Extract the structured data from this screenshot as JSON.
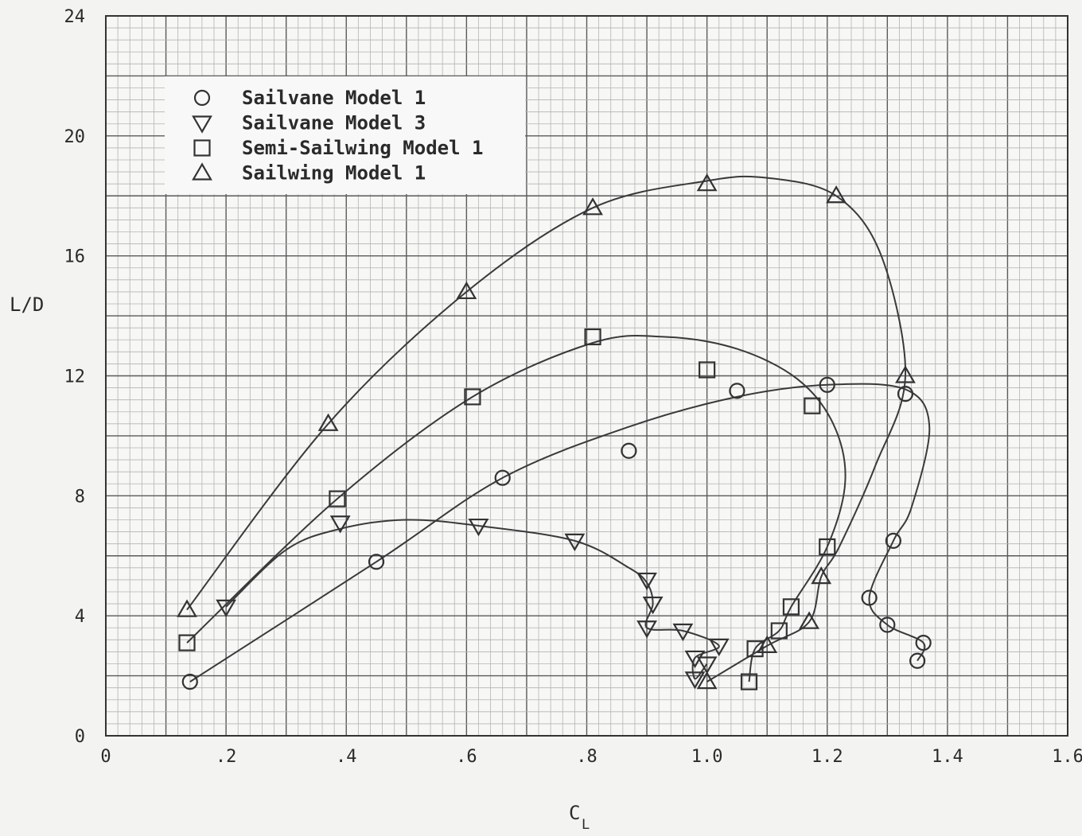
{
  "chart_data": {
    "type": "scatter",
    "xlabel": "C",
    "xlabel_sub": "L",
    "ylabel": "L/D",
    "xlim": [
      0,
      1.6
    ],
    "ylim": [
      0,
      24
    ],
    "xticks": [
      0,
      0.2,
      0.4,
      0.6,
      0.8,
      1.0,
      1.2,
      1.4,
      1.6
    ],
    "xtick_labels": [
      "0",
      ".2",
      ".4",
      ".6",
      ".8",
      "1.0",
      "1.2",
      "1.4",
      "1.6"
    ],
    "yticks": [
      0,
      4,
      8,
      12,
      16,
      20,
      24
    ],
    "ytick_labels": [
      "0",
      "4",
      "8",
      "12",
      "16",
      "20",
      "24"
    ],
    "grid": true,
    "legend_position": "top-left",
    "series": [
      {
        "name": "Sailvane Model 1",
        "marker": "circle",
        "points": [
          [
            0.14,
            1.8
          ],
          [
            0.45,
            5.8
          ],
          [
            0.66,
            8.6
          ],
          [
            0.87,
            9.5
          ],
          [
            1.05,
            11.5
          ],
          [
            1.2,
            11.7
          ],
          [
            1.33,
            11.4
          ],
          [
            1.31,
            6.5
          ],
          [
            1.27,
            4.6
          ],
          [
            1.3,
            3.7
          ],
          [
            1.36,
            3.1
          ],
          [
            1.35,
            2.5
          ]
        ],
        "curve": [
          [
            0.14,
            1.8
          ],
          [
            0.45,
            5.8
          ],
          [
            0.66,
            8.6
          ],
          [
            0.87,
            10.3
          ],
          [
            1.05,
            11.3
          ],
          [
            1.2,
            11.7
          ],
          [
            1.33,
            11.55
          ],
          [
            1.37,
            10.3
          ],
          [
            1.34,
            7.6
          ],
          [
            1.31,
            6.5
          ],
          [
            1.27,
            4.6
          ],
          [
            1.3,
            3.7
          ],
          [
            1.36,
            3.1
          ],
          [
            1.35,
            2.5
          ]
        ]
      },
      {
        "name": "Sailvane Model 3",
        "marker": "triangle-down",
        "points": [
          [
            0.2,
            4.3
          ],
          [
            0.39,
            7.1
          ],
          [
            0.62,
            7.0
          ],
          [
            0.78,
            6.5
          ],
          [
            0.9,
            5.2
          ],
          [
            0.91,
            4.4
          ],
          [
            0.9,
            3.6
          ],
          [
            0.96,
            3.5
          ],
          [
            1.02,
            3.0
          ],
          [
            0.98,
            2.6
          ],
          [
            0.98,
            1.9
          ],
          [
            1.0,
            2.4
          ]
        ],
        "curve": [
          [
            0.2,
            4.3
          ],
          [
            0.3,
            6.2
          ],
          [
            0.39,
            6.9
          ],
          [
            0.5,
            7.2
          ],
          [
            0.62,
            7.0
          ],
          [
            0.78,
            6.5
          ],
          [
            0.87,
            5.6
          ],
          [
            0.9,
            5.1
          ],
          [
            0.91,
            4.4
          ],
          [
            0.9,
            3.6
          ],
          [
            0.96,
            3.5
          ],
          [
            1.02,
            3.0
          ],
          [
            0.98,
            2.6
          ],
          [
            0.98,
            1.9
          ],
          [
            1.0,
            2.4
          ]
        ]
      },
      {
        "name": "Semi-Sailwing Model 1",
        "marker": "square",
        "points": [
          [
            0.135,
            3.1
          ],
          [
            0.385,
            7.9
          ],
          [
            0.61,
            11.3
          ],
          [
            0.81,
            13.3
          ],
          [
            1.0,
            12.2
          ],
          [
            1.175,
            11.0
          ],
          [
            1.2,
            6.3
          ],
          [
            1.14,
            4.3
          ],
          [
            1.12,
            3.5
          ],
          [
            1.08,
            2.9
          ],
          [
            1.07,
            1.8
          ]
        ],
        "curve": [
          [
            0.135,
            3.1
          ],
          [
            0.385,
            7.9
          ],
          [
            0.61,
            11.3
          ],
          [
            0.81,
            13.1
          ],
          [
            0.93,
            13.3
          ],
          [
            1.05,
            12.9
          ],
          [
            1.15,
            11.9
          ],
          [
            1.21,
            10.4
          ],
          [
            1.23,
            8.5
          ],
          [
            1.2,
            6.3
          ],
          [
            1.14,
            4.3
          ],
          [
            1.12,
            3.5
          ],
          [
            1.08,
            2.9
          ],
          [
            1.07,
            1.8
          ]
        ]
      },
      {
        "name": "Sailwing Model 1",
        "marker": "triangle-up",
        "points": [
          [
            0.135,
            4.2
          ],
          [
            0.37,
            10.4
          ],
          [
            0.6,
            14.8
          ],
          [
            0.81,
            17.6
          ],
          [
            1.0,
            18.4
          ],
          [
            1.215,
            18.0
          ],
          [
            1.33,
            12.0
          ],
          [
            1.19,
            5.3
          ],
          [
            1.17,
            3.8
          ],
          [
            1.1,
            3.0
          ],
          [
            1.0,
            1.8
          ]
        ],
        "curve": [
          [
            0.135,
            4.2
          ],
          [
            0.37,
            10.4
          ],
          [
            0.6,
            14.8
          ],
          [
            0.81,
            17.6
          ],
          [
            1.0,
            18.5
          ],
          [
            1.1,
            18.6
          ],
          [
            1.215,
            18.0
          ],
          [
            1.29,
            16.0
          ],
          [
            1.33,
            12.0
          ],
          [
            1.28,
            9.0
          ],
          [
            1.22,
            6.3
          ],
          [
            1.19,
            5.3
          ],
          [
            1.17,
            3.8
          ],
          [
            1.1,
            3.0
          ],
          [
            1.0,
            1.8
          ]
        ]
      }
    ]
  }
}
